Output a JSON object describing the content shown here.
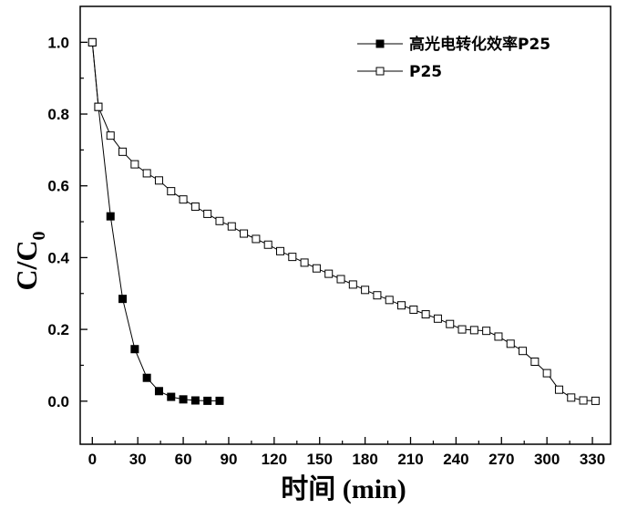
{
  "chart_data": {
    "type": "line",
    "xlabel": "时间 (min)",
    "ylabel_main": "C/C",
    "ylabel_sub": "0",
    "xlim": [
      -8,
      342
    ],
    "ylim": [
      -0.12,
      1.1
    ],
    "xticks": [
      0,
      30,
      60,
      90,
      120,
      150,
      180,
      210,
      240,
      270,
      300,
      330
    ],
    "yticks": [
      0.0,
      0.2,
      0.4,
      0.6,
      0.8,
      1.0
    ],
    "ytick_labels": [
      "0.0",
      "0.2",
      "0.4",
      "0.6",
      "0.8",
      "1.0"
    ],
    "legend_position": "top-right",
    "grid": false,
    "series": [
      {
        "name": "高光电转化效率P25",
        "marker": "filled-square",
        "color": "#000000",
        "x": [
          0,
          4,
          12,
          20,
          28,
          36,
          44,
          52,
          60,
          68,
          76,
          84
        ],
        "y": [
          1.0,
          0.82,
          0.515,
          0.285,
          0.145,
          0.065,
          0.028,
          0.012,
          0.005,
          0.002,
          0.001,
          0.001
        ]
      },
      {
        "name": "P25",
        "marker": "open-square",
        "color": "#000000",
        "x": [
          0,
          4,
          12,
          20,
          28,
          36,
          44,
          52,
          60,
          68,
          76,
          84,
          92,
          100,
          108,
          116,
          124,
          132,
          140,
          148,
          156,
          164,
          172,
          180,
          188,
          196,
          204,
          212,
          220,
          228,
          236,
          244,
          252,
          260,
          268,
          276,
          284,
          292,
          300,
          308,
          316,
          324,
          332
        ],
        "y": [
          1.0,
          0.82,
          0.74,
          0.695,
          0.66,
          0.635,
          0.615,
          0.585,
          0.562,
          0.542,
          0.522,
          0.502,
          0.487,
          0.467,
          0.452,
          0.436,
          0.418,
          0.402,
          0.386,
          0.37,
          0.355,
          0.34,
          0.325,
          0.31,
          0.295,
          0.282,
          0.267,
          0.255,
          0.242,
          0.23,
          0.215,
          0.2,
          0.198,
          0.196,
          0.18,
          0.16,
          0.14,
          0.11,
          0.078,
          0.032,
          0.01,
          0.002,
          0.001
        ]
      }
    ]
  }
}
